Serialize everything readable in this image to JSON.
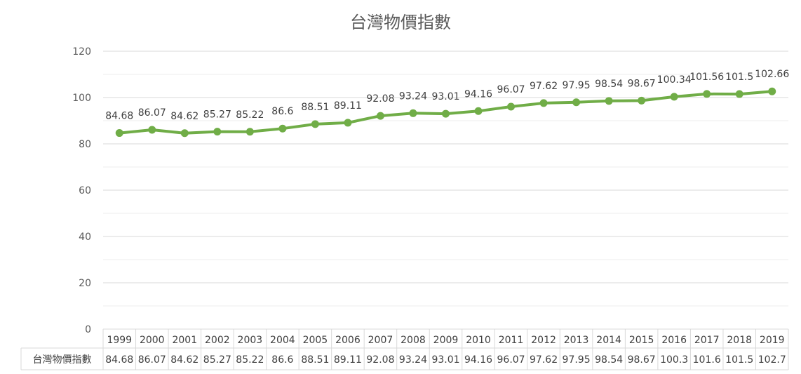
{
  "chart_data": {
    "type": "line",
    "title": "台灣物價指數",
    "categories": [
      "1999",
      "2000",
      "2001",
      "2002",
      "2003",
      "2004",
      "2005",
      "2006",
      "2007",
      "2008",
      "2009",
      "2010",
      "2011",
      "2012",
      "2013",
      "2014",
      "2015",
      "2016",
      "2017",
      "2018",
      "2019"
    ],
    "series": [
      {
        "name": "台灣物價指數",
        "color": "#70ad47",
        "values": [
          84.68,
          86.07,
          84.62,
          85.27,
          85.22,
          86.6,
          88.51,
          89.11,
          92.08,
          93.24,
          93.01,
          94.16,
          96.07,
          97.62,
          97.95,
          98.54,
          98.67,
          100.34,
          101.56,
          101.5,
          102.66
        ],
        "data_labels": [
          "84.68",
          "86.07",
          "84.62",
          "85.27",
          "85.22",
          "86.6",
          "88.51",
          "89.11",
          "92.08",
          "93.24",
          "93.01",
          "94.16",
          "96.07",
          "97.62",
          "97.95",
          "98.54",
          "98.67",
          "100.34",
          "101.56",
          "101.5",
          "102.66"
        ],
        "table_values": [
          "84.68",
          "86.07",
          "84.62",
          "85.27",
          "85.22",
          "86.6",
          "88.51",
          "89.11",
          "92.08",
          "93.24",
          "93.01",
          "94.16",
          "96.07",
          "97.62",
          "97.95",
          "98.54",
          "98.67",
          "100.3",
          "101.6",
          "101.5",
          "102.7"
        ]
      }
    ],
    "ylim": [
      0,
      120
    ],
    "yticks": [
      "0",
      "20",
      "40",
      "60",
      "80",
      "100",
      "120"
    ],
    "grid": true,
    "data_table": true
  }
}
